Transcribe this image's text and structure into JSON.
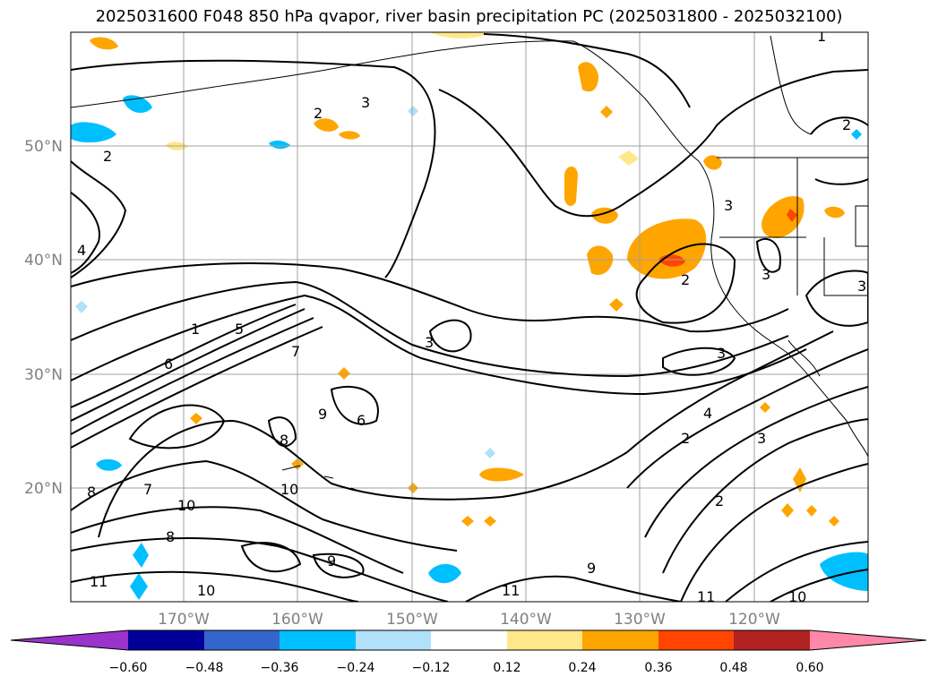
{
  "title": "2025031600 F048 850 hPa qvapor, river basin precipitation PC (2025031800 - 2025032100)",
  "map": {
    "lat_labels": [
      "50°N",
      "40°N",
      "30°N",
      "20°N"
    ],
    "lon_labels": [
      "170°W",
      "160°W",
      "150°W",
      "140°W",
      "130°W",
      "120°W"
    ],
    "contour_labels": [
      "1",
      "2",
      "2",
      "2",
      "2",
      "2",
      "3",
      "3",
      "3",
      "3",
      "3",
      "3",
      "4",
      "4",
      "5",
      "6",
      "7",
      "7",
      "8",
      "8",
      "9",
      "9",
      "9",
      "10",
      "10",
      "10",
      "10",
      "11",
      "11",
      "11",
      "1",
      "2",
      "3",
      "6",
      "8"
    ]
  },
  "colorbar": {
    "colors": [
      "#9933cc",
      "#000099",
      "#3366cc",
      "#00bfff",
      "#b0e0fa",
      "#ffffff",
      "#ffe78a",
      "#ffa500",
      "#ff4500",
      "#b22222",
      "#ff88aa"
    ],
    "ticks": [
      "−0.60",
      "−0.48",
      "−0.36",
      "−0.24",
      "−0.12",
      "0.12",
      "0.24",
      "0.36",
      "0.48",
      "0.60"
    ]
  }
}
